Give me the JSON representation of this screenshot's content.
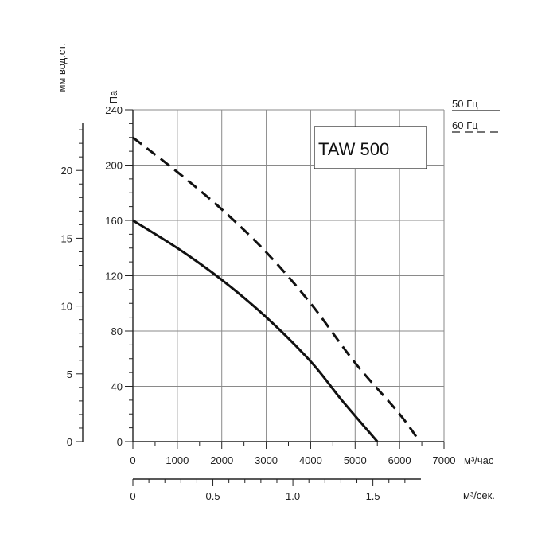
{
  "chart_data": {
    "type": "line",
    "title": "TAW 500",
    "x": {
      "label": "м³/час",
      "ticks": [
        0,
        1000,
        2000,
        3000,
        4000,
        5000,
        6000,
        7000
      ],
      "range": [
        0,
        7000
      ]
    },
    "x2": {
      "label": "м³/сек.",
      "ticks": [
        0,
        0.5,
        1.0,
        1.5
      ],
      "tick_labels": [
        "0",
        "0.5",
        "1.0",
        "1.5"
      ]
    },
    "y": {
      "label": "Па",
      "ticks": [
        0,
        40,
        80,
        120,
        160,
        200,
        240
      ],
      "range": [
        0,
        240
      ]
    },
    "y2": {
      "label": "мм вод.ст.",
      "ticks": [
        0,
        5,
        10,
        15,
        20
      ]
    },
    "grid": true,
    "legend": {
      "position": "top-right",
      "entries": [
        {
          "label": "50 Гц",
          "style": "solid"
        },
        {
          "label": "60 Гц",
          "style": "dashed"
        }
      ]
    },
    "series": [
      {
        "name": "50 Гц",
        "style": "solid",
        "points": [
          [
            0,
            160
          ],
          [
            1000,
            140
          ],
          [
            2000,
            117
          ],
          [
            3000,
            90
          ],
          [
            4000,
            58
          ],
          [
            4700,
            30
          ],
          [
            5500,
            0
          ]
        ]
      },
      {
        "name": "60 Гц",
        "style": "dashed",
        "points": [
          [
            0,
            220
          ],
          [
            1000,
            195
          ],
          [
            2000,
            168
          ],
          [
            3000,
            137
          ],
          [
            4000,
            100
          ],
          [
            5000,
            57
          ],
          [
            6000,
            20
          ],
          [
            6450,
            0
          ]
        ]
      }
    ]
  }
}
